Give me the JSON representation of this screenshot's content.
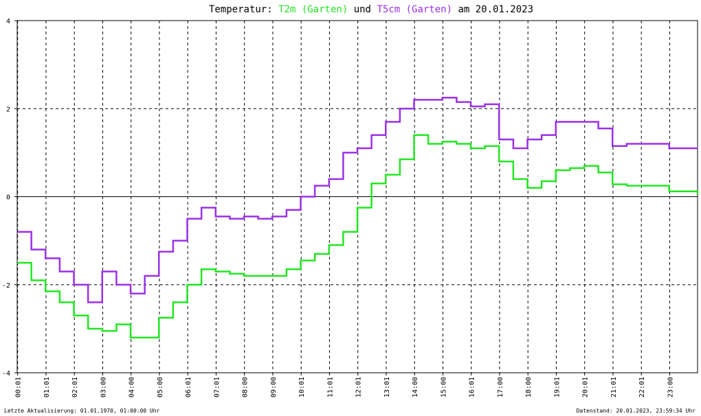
{
  "chart_data": {
    "type": "line",
    "title": "Temperatur:",
    "title_connector": "und",
    "title_date": "am 20.01.2023",
    "footer_left": "Letzte Aktualisierung: 01.01.1970, 01:00:00 Uhr",
    "footer_right": "Datenstand: 20.01.2023, 23:59:34 Uhr",
    "x": [
      0,
      30,
      60,
      90,
      120,
      150,
      180,
      210,
      240,
      270,
      300,
      330,
      360,
      390,
      420,
      450,
      480,
      510,
      540,
      570,
      600,
      630,
      660,
      690,
      720,
      750,
      780,
      810,
      840,
      870,
      900,
      930,
      960,
      990,
      1020,
      1050,
      1080,
      1110,
      1140,
      1170,
      1200,
      1230,
      1260,
      1290,
      1320,
      1350,
      1380,
      1410,
      1440
    ],
    "xlim": [
      0,
      1440
    ],
    "xticks": [
      {
        "value": 1,
        "label": "00:01"
      },
      {
        "value": 61,
        "label": "01:01"
      },
      {
        "value": 121,
        "label": "02:01"
      },
      {
        "value": 181,
        "label": "03:00"
      },
      {
        "value": 241,
        "label": "04:00"
      },
      {
        "value": 301,
        "label": "05:00"
      },
      {
        "value": 361,
        "label": "06:01"
      },
      {
        "value": 421,
        "label": "07:01"
      },
      {
        "value": 481,
        "label": "08:00"
      },
      {
        "value": 541,
        "label": "09:00"
      },
      {
        "value": 601,
        "label": "10:01"
      },
      {
        "value": 661,
        "label": "11:01"
      },
      {
        "value": 721,
        "label": "12:01"
      },
      {
        "value": 781,
        "label": "13:01"
      },
      {
        "value": 841,
        "label": "14:00"
      },
      {
        "value": 901,
        "label": "15:00"
      },
      {
        "value": 961,
        "label": "16:01"
      },
      {
        "value": 1021,
        "label": "17:00"
      },
      {
        "value": 1081,
        "label": "18:00"
      },
      {
        "value": 1141,
        "label": "19:01"
      },
      {
        "value": 1201,
        "label": "20:01"
      },
      {
        "value": 1261,
        "label": "21:01"
      },
      {
        "value": 1321,
        "label": "22:01"
      },
      {
        "value": 1381,
        "label": "23:00"
      }
    ],
    "ylim": [
      -4,
      4
    ],
    "yticks": [
      -4,
      -2,
      0,
      2,
      4
    ],
    "grid": true,
    "series": [
      {
        "name": "T2m (Garten)",
        "color": "#22e622",
        "values": [
          -1.5,
          -1.9,
          -2.15,
          -2.4,
          -2.7,
          -3.0,
          -3.05,
          -2.9,
          -3.2,
          -3.2,
          -2.75,
          -2.4,
          -2.0,
          -1.65,
          -1.7,
          -1.75,
          -1.8,
          -1.8,
          -1.8,
          -1.65,
          -1.45,
          -1.3,
          -1.1,
          -0.8,
          -0.25,
          0.3,
          0.5,
          0.85,
          1.4,
          1.2,
          1.25,
          1.2,
          1.1,
          1.15,
          0.8,
          0.4,
          0.2,
          0.35,
          0.6,
          0.65,
          0.7,
          0.55,
          0.28,
          0.25,
          0.25,
          0.25,
          0.12,
          0.12,
          0.05
        ]
      },
      {
        "name": "T5cm (Garten)",
        "color": "#9a30e6",
        "values": [
          -0.8,
          -1.2,
          -1.4,
          -1.7,
          -2.0,
          -2.4,
          -1.7,
          -2.0,
          -2.2,
          -1.8,
          -1.25,
          -1.0,
          -0.5,
          -0.25,
          -0.45,
          -0.5,
          -0.45,
          -0.5,
          -0.45,
          -0.3,
          0.0,
          0.25,
          0.4,
          1.0,
          1.1,
          1.4,
          1.7,
          2.0,
          2.2,
          2.2,
          2.25,
          2.15,
          2.05,
          2.1,
          1.3,
          1.1,
          1.3,
          1.4,
          1.7,
          1.7,
          1.7,
          1.55,
          1.15,
          1.2,
          1.2,
          1.2,
          1.1,
          1.1,
          1.1
        ]
      }
    ]
  }
}
